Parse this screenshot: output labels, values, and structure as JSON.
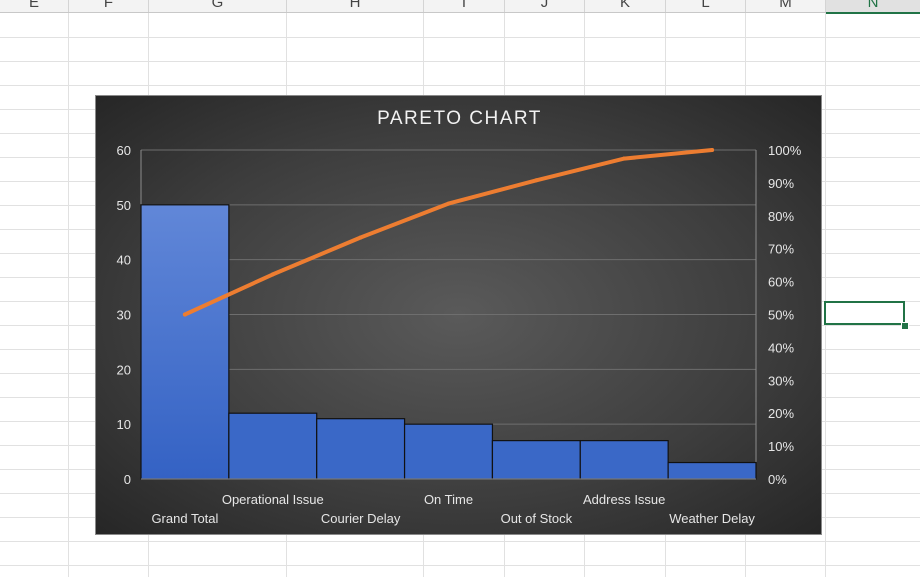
{
  "sheet": {
    "column_headers": [
      "E",
      "F",
      "G",
      "H",
      "I",
      "J",
      "K",
      "L",
      "M",
      "N"
    ],
    "active_column": "N"
  },
  "chart_data": {
    "type": "bar",
    "title": "PARETO CHART",
    "categories": [
      "Grand Total",
      "Operational Issue",
      "Courier Delay",
      "On Time",
      "Out of Stock",
      "Address Issue",
      "Weather Delay"
    ],
    "series": [
      {
        "values": [
          50,
          12,
          11,
          10,
          7,
          7,
          3
        ],
        "kind": "bar",
        "color": "#3a68c7"
      },
      {
        "values": [
          50,
          62.2,
          73.4,
          83.7,
          90.8,
          97.4,
          100
        ],
        "kind": "line",
        "axis": "secondary",
        "unit": "%",
        "color": "#ed7d31"
      }
    ],
    "y_ticks": [
      "0",
      "10",
      "20",
      "30",
      "40",
      "50",
      "60"
    ],
    "y2_ticks": [
      "0%",
      "10%",
      "20%",
      "30%",
      "40%",
      "50%",
      "60%",
      "70%",
      "80%",
      "90%",
      "100%"
    ],
    "ylim": [
      0,
      60
    ],
    "y2lim": [
      0,
      100
    ],
    "grid": true,
    "legend": "none"
  }
}
